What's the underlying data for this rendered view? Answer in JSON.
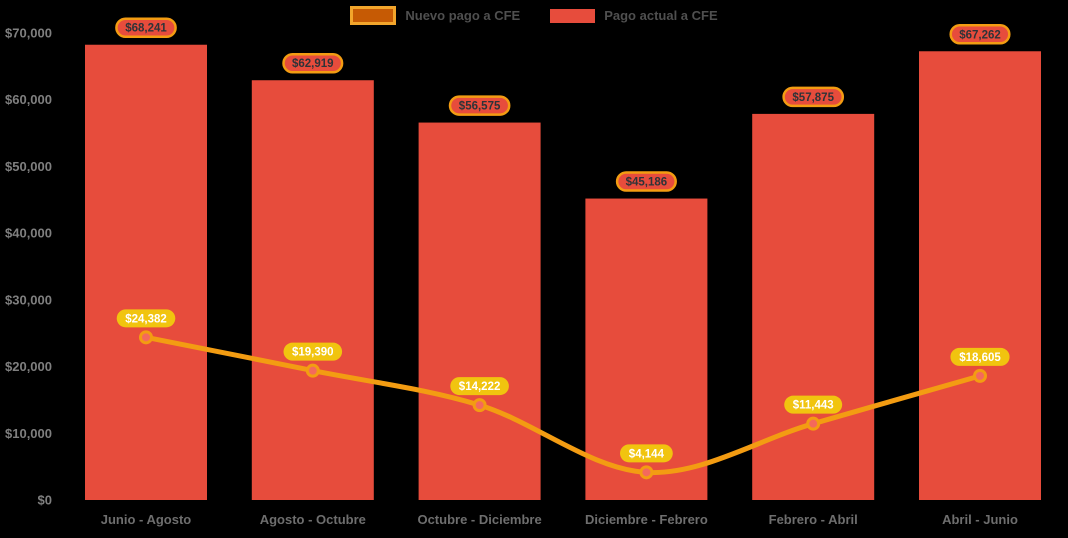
{
  "colors": {
    "background": "#000000",
    "bar": "#E74C3C",
    "line": "#F39C12",
    "marker_fill": "#F4695C",
    "marker_stroke": "#F39C12",
    "bar_pill_fill": "#E74C3C",
    "bar_pill_border": "#F39C12",
    "bar_pill_text": "#2E3338",
    "line_pill_fill": "#F1C40F",
    "line_pill_text": "#FFFFFF",
    "y_tick_text": "#7F7F7F",
    "x_label_text": "#6E6E6E",
    "legend_text": "#4F4F4F"
  },
  "legend": {
    "items": [
      {
        "id": "nuevo",
        "label": "Nuevo pago a CFE",
        "swatch_fill": "#C65A04",
        "swatch_border": "#F2A52B"
      },
      {
        "id": "actual",
        "label": "Pago actual a CFE",
        "swatch_fill": "#E74C3C",
        "swatch_border": null
      }
    ]
  },
  "chart_data": {
    "type": "bar",
    "title": "",
    "xlabel": "",
    "ylabel": "",
    "ylim": [
      0,
      70000
    ],
    "grid": false,
    "legend_position": "top-center",
    "categories": [
      "Junio - Agosto",
      "Agosto - Octubre",
      "Octubre - Diciembre",
      "Diciembre - Febrero",
      "Febrero - Abril",
      "Abril - Junio"
    ],
    "series": [
      {
        "name": "Pago actual a CFE",
        "type": "bar",
        "color": "#E74C3C",
        "values": [
          68241,
          62919,
          56575,
          45186,
          57875,
          67262
        ],
        "labels": [
          "$68,241",
          "$62,919",
          "$56,575",
          "$45,186",
          "$57,875",
          "$67,262"
        ]
      },
      {
        "name": "Nuevo pago a CFE",
        "type": "line",
        "color": "#F39C12",
        "values": [
          24382,
          19390,
          14222,
          4144,
          11443,
          18605
        ],
        "labels": [
          "$24,382",
          "$19,390",
          "$14,222",
          "$4,144",
          "$11,443",
          "$18,605"
        ]
      }
    ],
    "y_ticks": [
      {
        "value": 0,
        "label": "$0"
      },
      {
        "value": 10000,
        "label": "$10,000"
      },
      {
        "value": 20000,
        "label": "$20,000"
      },
      {
        "value": 30000,
        "label": "$30,000"
      },
      {
        "value": 40000,
        "label": "$40,000"
      },
      {
        "value": 50000,
        "label": "$50,000"
      },
      {
        "value": 60000,
        "label": "$60,000"
      },
      {
        "value": 70000,
        "label": "$70,000"
      }
    ]
  }
}
